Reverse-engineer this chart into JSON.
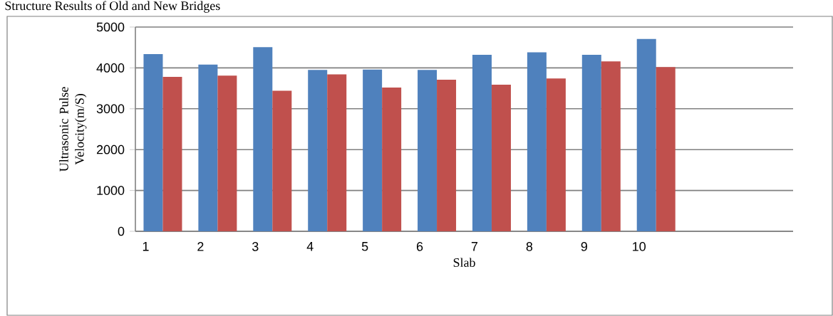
{
  "chart_data": {
    "type": "bar",
    "title": "Structure Results of Old and New Bridges",
    "xlabel": "Slab",
    "ylabel": "Ultrasonic Pulse Velocity(m/S)",
    "categories": [
      "1",
      "2",
      "3",
      "4",
      "5",
      "6",
      "7",
      "8",
      "9",
      "10",
      null,
      null
    ],
    "series": [
      {
        "color": "#4f81bd",
        "values": [
          4340,
          4080,
          4510,
          3950,
          3960,
          3950,
          4320,
          4380,
          4320,
          4710,
          null,
          null
        ]
      },
      {
        "color": "#c0504d",
        "values": [
          3780,
          3810,
          3440,
          3840,
          3520,
          3710,
          3590,
          3740,
          4160,
          4020,
          null,
          null
        ]
      }
    ],
    "ylim": [
      0,
      5000
    ],
    "yticks": [
      0,
      1000,
      2000,
      3000,
      4000,
      5000
    ],
    "grid": "y"
  }
}
